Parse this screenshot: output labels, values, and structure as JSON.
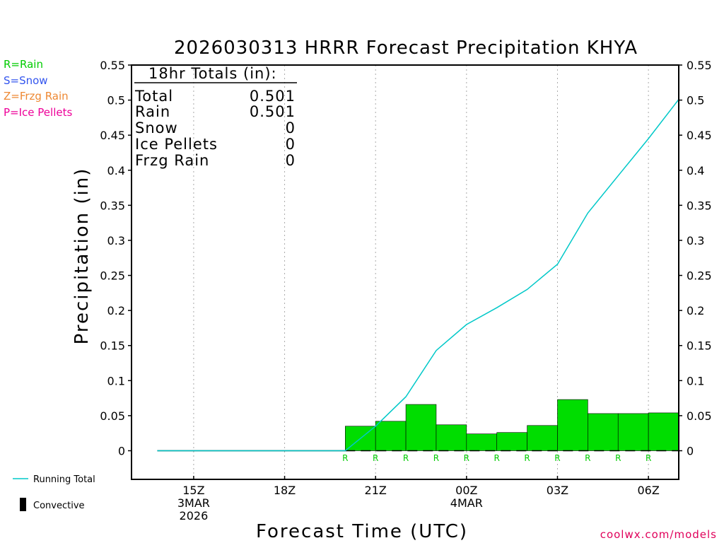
{
  "title": "2026030313 HRRR Forecast Precipitation KHYA",
  "legend_types": [
    {
      "text": "R=Rain",
      "color": "#00cc00"
    },
    {
      "text": "S=Snow",
      "color": "#3355ee"
    },
    {
      "text": "Z=Frzg Rain",
      "color": "#ee8833"
    },
    {
      "text": "P=Ice Pellets",
      "color": "#ee0099"
    }
  ],
  "legend_bottom": {
    "running_total": "Running Total",
    "convective": "Convective"
  },
  "totals_box": {
    "header": "18hr Totals (in):",
    "rows": [
      {
        "label": "Total",
        "value": "0.501"
      },
      {
        "label": "Rain",
        "value": "0.501"
      },
      {
        "label": "Snow",
        "value": "0"
      },
      {
        "label": "Ice Pellets",
        "value": "0"
      },
      {
        "label": "Frzg Rain",
        "value": "0"
      }
    ]
  },
  "watermark": "coolwx.com/models",
  "colors": {
    "rain_bar": "#00dd00",
    "running_total": "#00c8c8",
    "rain_code": "#00cc00",
    "grid": "#aaaaaa"
  },
  "chart_data": {
    "type": "bar",
    "title": "2026030313 HRRR Forecast Precipitation KHYA",
    "xlabel": "Forecast Time (UTC)",
    "ylabel": "Precipitation (in)",
    "ylim": [
      -0.04,
      0.55
    ],
    "yticks": [
      "0.55",
      "0.5",
      "0.45",
      "0.4",
      "0.35",
      "0.3",
      "0.25",
      "0.2",
      "0.15",
      "0.1",
      "0.05",
      "0"
    ],
    "ytick_values": [
      0.55,
      0.5,
      0.45,
      0.4,
      0.35,
      0.3,
      0.25,
      0.2,
      0.15,
      0.1,
      0.05,
      0
    ],
    "grid": "vertical dotted",
    "x_ticks": [
      {
        "hour": 15,
        "lines": [
          "15Z",
          "3MAR",
          "2026"
        ]
      },
      {
        "hour": 18,
        "lines": [
          "18Z"
        ]
      },
      {
        "hour": 21,
        "lines": [
          "21Z"
        ]
      },
      {
        "hour": 24,
        "lines": [
          "00Z",
          "4MAR"
        ]
      },
      {
        "hour": 27,
        "lines": [
          "03Z"
        ]
      },
      {
        "hour": 30,
        "lines": [
          "06Z"
        ]
      }
    ],
    "xlim_hours": [
      12.95,
      31.0
    ],
    "bars": {
      "end_hours": [
        21,
        22,
        23,
        24,
        25,
        26,
        27,
        28,
        29,
        30,
        31
      ],
      "values": [
        0.035,
        0.042,
        0.066,
        0.037,
        0.024,
        0.026,
        0.036,
        0.073,
        0.053,
        0.053,
        0.054
      ],
      "precip_type": [
        "R",
        "R",
        "R",
        "R",
        "R",
        "R",
        "R",
        "R",
        "R",
        "R",
        "R"
      ]
    },
    "series": [
      {
        "name": "Running Total",
        "x_hours": [
          13.8,
          20.0,
          21.0,
          22.0,
          23.0,
          24.0,
          25.0,
          26.0,
          27.0,
          28.0,
          29.0,
          30.0,
          31.0
        ],
        "values": [
          0,
          0,
          0.035,
          0.077,
          0.143,
          0.18,
          0.204,
          0.23,
          0.266,
          0.339,
          0.392,
          0.445,
          0.501
        ]
      }
    ]
  }
}
